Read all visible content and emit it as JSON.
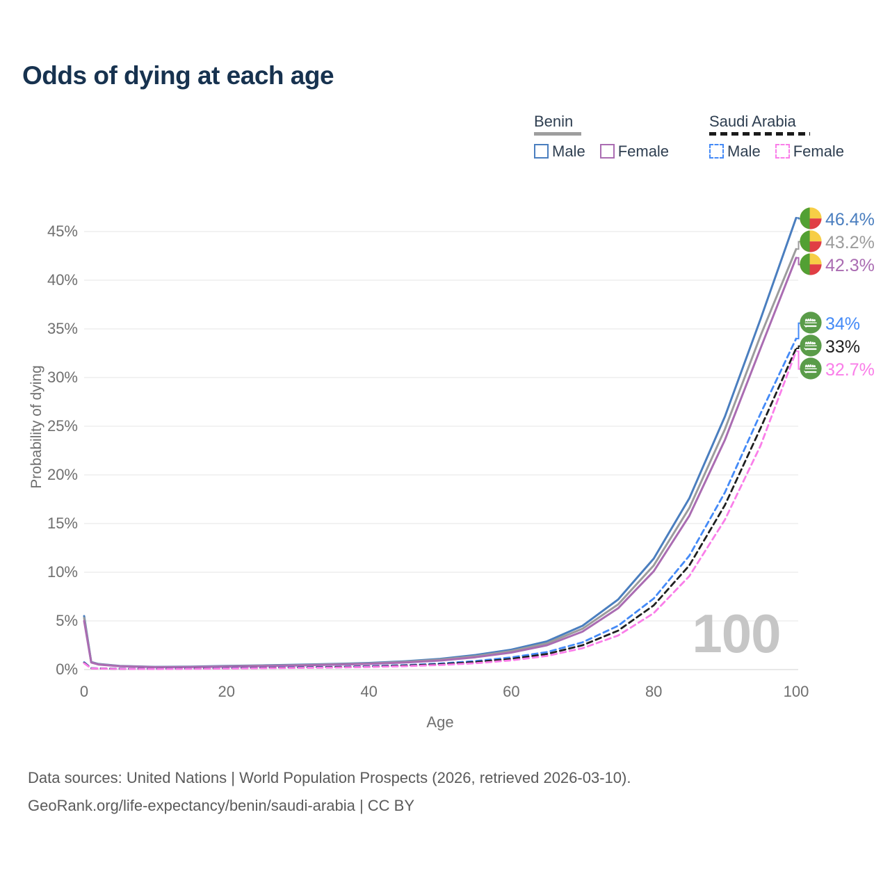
{
  "title": "Odds of dying at each age",
  "watermark": "100",
  "legend": {
    "groups": [
      {
        "country": "Benin",
        "style": "solid",
        "underline_color": "#9e9e9e",
        "items": [
          {
            "label": "Male",
            "series": "benin_male"
          },
          {
            "label": "Female",
            "series": "benin_female"
          }
        ]
      },
      {
        "country": "Saudi Arabia",
        "style": "dashed",
        "underline_color": "#1b1b1b",
        "items": [
          {
            "label": "Male",
            "series": "saudi_male"
          },
          {
            "label": "Female",
            "series": "saudi_female"
          }
        ]
      }
    ]
  },
  "footer": {
    "line1": "Data sources: United Nations | World Population Prospects (2026, retrieved 2026-03-10).",
    "line2": "GeoRank.org/life-expectancy/benin/saudi-arabia | CC BY"
  },
  "chart_data": {
    "type": "line",
    "title": "Odds of dying at each age",
    "xlabel": "Age",
    "ylabel": "Probability of dying",
    "xlim": [
      0,
      100
    ],
    "ylim_pct": [
      0,
      47
    ],
    "grid": "horizontal",
    "legend_position": "top-right",
    "x_ticks": [
      0,
      20,
      40,
      60,
      80,
      100
    ],
    "y_tick_values": [
      0,
      5,
      10,
      15,
      20,
      25,
      30,
      35,
      40,
      45
    ],
    "y_tick_labels": [
      "0%",
      "5%",
      "10%",
      "15%",
      "20%",
      "25%",
      "30%",
      "35%",
      "40%",
      "45%"
    ],
    "series": [
      {
        "id": "benin_male",
        "name": "Benin Male",
        "country": "Benin",
        "color": "#4a7ebf",
        "dash": "solid",
        "end_label": "46.4%",
        "flag": "benin",
        "points": [
          [
            0,
            5.5
          ],
          [
            1,
            0.78
          ],
          [
            2,
            0.58
          ],
          [
            5,
            0.38
          ],
          [
            10,
            0.28
          ],
          [
            15,
            0.3
          ],
          [
            20,
            0.37
          ],
          [
            25,
            0.43
          ],
          [
            30,
            0.5
          ],
          [
            35,
            0.58
          ],
          [
            40,
            0.68
          ],
          [
            45,
            0.85
          ],
          [
            50,
            1.1
          ],
          [
            55,
            1.5
          ],
          [
            60,
            2.05
          ],
          [
            65,
            2.9
          ],
          [
            70,
            4.5
          ],
          [
            75,
            7.2
          ],
          [
            80,
            11.4
          ],
          [
            85,
            17.6
          ],
          [
            90,
            26.0
          ],
          [
            95,
            36.0
          ],
          [
            100,
            46.4
          ]
        ]
      },
      {
        "id": "benin_both",
        "name": "Benin Both sexes",
        "country": "Benin",
        "color": "#9c9c9c",
        "dash": "solid",
        "end_label": "43.2%",
        "flag": "benin",
        "points": [
          [
            0,
            5.3
          ],
          [
            1,
            0.76
          ],
          [
            2,
            0.55
          ],
          [
            5,
            0.36
          ],
          [
            10,
            0.26
          ],
          [
            15,
            0.28
          ],
          [
            20,
            0.34
          ],
          [
            25,
            0.4
          ],
          [
            30,
            0.46
          ],
          [
            35,
            0.54
          ],
          [
            40,
            0.63
          ],
          [
            45,
            0.79
          ],
          [
            50,
            1.02
          ],
          [
            55,
            1.38
          ],
          [
            60,
            1.9
          ],
          [
            65,
            2.7
          ],
          [
            70,
            4.2
          ],
          [
            75,
            6.7
          ],
          [
            80,
            10.7
          ],
          [
            85,
            16.6
          ],
          [
            90,
            24.7
          ],
          [
            95,
            34.3
          ],
          [
            100,
            43.2
          ]
        ]
      },
      {
        "id": "benin_female",
        "name": "Benin Female",
        "country": "Benin",
        "color": "#aa6cb2",
        "dash": "solid",
        "end_label": "42.3%",
        "flag": "benin",
        "points": [
          [
            0,
            5.0
          ],
          [
            1,
            0.73
          ],
          [
            2,
            0.52
          ],
          [
            5,
            0.34
          ],
          [
            10,
            0.24
          ],
          [
            15,
            0.26
          ],
          [
            20,
            0.31
          ],
          [
            25,
            0.36
          ],
          [
            30,
            0.42
          ],
          [
            35,
            0.5
          ],
          [
            40,
            0.58
          ],
          [
            45,
            0.72
          ],
          [
            50,
            0.93
          ],
          [
            55,
            1.27
          ],
          [
            60,
            1.75
          ],
          [
            65,
            2.5
          ],
          [
            70,
            3.9
          ],
          [
            75,
            6.3
          ],
          [
            80,
            10.1
          ],
          [
            85,
            15.8
          ],
          [
            90,
            23.6
          ],
          [
            95,
            33.0
          ],
          [
            100,
            42.3
          ]
        ]
      },
      {
        "id": "saudi_male",
        "name": "Saudi Arabia Male",
        "country": "Saudi Arabia",
        "color": "#448af7",
        "dash": "dashed",
        "end_label": "34%",
        "flag": "saudi-arabia",
        "points": [
          [
            0,
            0.75
          ],
          [
            1,
            0.14
          ],
          [
            5,
            0.09
          ],
          [
            10,
            0.08
          ],
          [
            15,
            0.11
          ],
          [
            20,
            0.15
          ],
          [
            25,
            0.19
          ],
          [
            30,
            0.23
          ],
          [
            35,
            0.28
          ],
          [
            40,
            0.35
          ],
          [
            45,
            0.46
          ],
          [
            50,
            0.62
          ],
          [
            55,
            0.88
          ],
          [
            60,
            1.25
          ],
          [
            65,
            1.8
          ],
          [
            70,
            2.8
          ],
          [
            75,
            4.5
          ],
          [
            80,
            7.3
          ],
          [
            85,
            11.7
          ],
          [
            90,
            18.2
          ],
          [
            95,
            26.3
          ],
          [
            100,
            34.0
          ]
        ]
      },
      {
        "id": "saudi_both",
        "name": "Saudi Arabia Both sexes",
        "country": "Saudi Arabia",
        "color": "#1f1f1f",
        "dash": "dashed",
        "end_label": "33%",
        "flag": "saudi-arabia",
        "points": [
          [
            0,
            0.7
          ],
          [
            1,
            0.13
          ],
          [
            5,
            0.08
          ],
          [
            10,
            0.07
          ],
          [
            15,
            0.1
          ],
          [
            20,
            0.13
          ],
          [
            25,
            0.17
          ],
          [
            30,
            0.2
          ],
          [
            35,
            0.25
          ],
          [
            40,
            0.31
          ],
          [
            45,
            0.41
          ],
          [
            50,
            0.55
          ],
          [
            55,
            0.78
          ],
          [
            60,
            1.1
          ],
          [
            65,
            1.6
          ],
          [
            70,
            2.5
          ],
          [
            75,
            4.0
          ],
          [
            80,
            6.6
          ],
          [
            85,
            10.7
          ],
          [
            90,
            16.9
          ],
          [
            95,
            24.8
          ],
          [
            100,
            33.0
          ]
        ]
      },
      {
        "id": "saudi_female",
        "name": "Saudi Arabia Female",
        "country": "Saudi Arabia",
        "color": "#fa7ee9",
        "dash": "dashed",
        "end_label": "32.7%",
        "flag": "saudi-arabia",
        "points": [
          [
            0,
            0.65
          ],
          [
            1,
            0.12
          ],
          [
            5,
            0.07
          ],
          [
            10,
            0.06
          ],
          [
            15,
            0.08
          ],
          [
            20,
            0.11
          ],
          [
            25,
            0.14
          ],
          [
            30,
            0.17
          ],
          [
            35,
            0.21
          ],
          [
            40,
            0.27
          ],
          [
            45,
            0.35
          ],
          [
            50,
            0.47
          ],
          [
            55,
            0.66
          ],
          [
            60,
            0.95
          ],
          [
            65,
            1.4
          ],
          [
            70,
            2.2
          ],
          [
            75,
            3.5
          ],
          [
            80,
            5.8
          ],
          [
            85,
            9.6
          ],
          [
            90,
            15.4
          ],
          [
            95,
            23.0
          ],
          [
            100,
            32.7
          ]
        ]
      }
    ]
  },
  "colors": {
    "title": "#17324f",
    "tick_text": "#6f6f6f",
    "gridline": "#e9e9e9",
    "gridline_zero": "#d9d9d9",
    "watermark": "#c6c6c6",
    "footer_text": "#5a5a5a",
    "benin_flag": {
      "green": "#52a033",
      "yellow": "#f7ce46",
      "red": "#e03e44"
    },
    "saudi_flag": {
      "green": "#5a9c49",
      "script": "#ffffff"
    }
  }
}
